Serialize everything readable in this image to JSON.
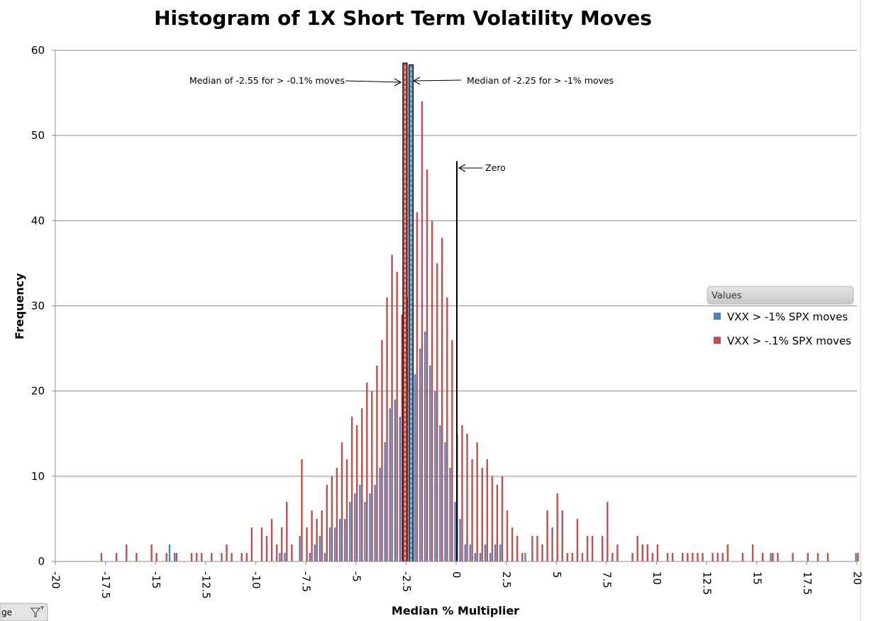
{
  "chart_data": {
    "type": "bar",
    "title": "Histogram of 1X Short Term Volatility Moves",
    "xlabel": "Median % Multiplier",
    "ylabel": "Frequency",
    "xlim": [
      -20,
      20
    ],
    "ylim": [
      0,
      60
    ],
    "x_ticks": [
      "-20",
      "-17.5",
      "-15",
      "-12.5",
      "-10",
      "-7.5",
      "-5",
      "-2.5",
      "0",
      "2.5",
      "5",
      "7.5",
      "10",
      "12.5",
      "15",
      "17.5",
      "20"
    ],
    "y_ticks": [
      "0",
      "10",
      "20",
      "30",
      "40",
      "50",
      "60"
    ],
    "grid": "horizontal",
    "legend": {
      "header": "Values",
      "placement": "right",
      "entries": [
        "VXX > -1% SPX moves",
        "VXX > -.1% SPX moves"
      ]
    },
    "colors": {
      "series_blue": "#4f81bd",
      "series_red": "#c0504d"
    },
    "series": [
      {
        "name": "VXX > -1% SPX moves",
        "points": [
          [
            -14.25,
            2
          ],
          [
            -14.0,
            1
          ],
          [
            -8.75,
            1
          ],
          [
            -8.5,
            1
          ],
          [
            -7.75,
            3
          ],
          [
            -7.25,
            1
          ],
          [
            -7.0,
            2
          ],
          [
            -6.75,
            3
          ],
          [
            -6.5,
            1
          ],
          [
            -6.25,
            4
          ],
          [
            -6.0,
            4
          ],
          [
            -5.75,
            5
          ],
          [
            -5.5,
            5
          ],
          [
            -5.25,
            7
          ],
          [
            -5.0,
            8
          ],
          [
            -4.75,
            9
          ],
          [
            -4.5,
            7
          ],
          [
            -4.25,
            8
          ],
          [
            -4.0,
            9
          ],
          [
            -3.75,
            11
          ],
          [
            -3.5,
            14
          ],
          [
            -3.25,
            18
          ],
          [
            -3.0,
            19
          ],
          [
            -2.75,
            17
          ],
          [
            -2.5,
            15
          ],
          [
            -2.25,
            18
          ],
          [
            -2.0,
            22
          ],
          [
            -1.75,
            25
          ],
          [
            -1.5,
            27
          ],
          [
            -1.25,
            23
          ],
          [
            -1.0,
            20
          ],
          [
            -0.75,
            16
          ],
          [
            -0.5,
            14
          ],
          [
            -0.25,
            11
          ],
          [
            0.0,
            7
          ],
          [
            0.25,
            5
          ],
          [
            0.5,
            2
          ],
          [
            0.75,
            2
          ],
          [
            1.0,
            1
          ],
          [
            1.25,
            1
          ],
          [
            1.5,
            2
          ],
          [
            1.75,
            1
          ],
          [
            2.0,
            2
          ],
          [
            2.25,
            2
          ],
          [
            3.5,
            1
          ],
          [
            15.75,
            1
          ],
          [
            20.0,
            1
          ]
        ]
      },
      {
        "name": "VXX > -.1% SPX moves",
        "points": [
          [
            -17.75,
            1
          ],
          [
            -17.0,
            1
          ],
          [
            -16.5,
            2
          ],
          [
            -16.0,
            1
          ],
          [
            -15.25,
            2
          ],
          [
            -15.0,
            1
          ],
          [
            -14.5,
            1
          ],
          [
            -14.0,
            1
          ],
          [
            -13.25,
            1
          ],
          [
            -13.0,
            1
          ],
          [
            -12.75,
            1
          ],
          [
            -12.25,
            1
          ],
          [
            -11.75,
            1
          ],
          [
            -11.5,
            2
          ],
          [
            -11.25,
            1
          ],
          [
            -10.75,
            1
          ],
          [
            -10.5,
            1
          ],
          [
            -10.25,
            4
          ],
          [
            -9.75,
            4
          ],
          [
            -9.5,
            3
          ],
          [
            -9.25,
            5
          ],
          [
            -9.0,
            2
          ],
          [
            -8.75,
            4
          ],
          [
            -8.5,
            7
          ],
          [
            -8.25,
            2
          ],
          [
            -7.75,
            12
          ],
          [
            -7.5,
            4
          ],
          [
            -7.25,
            6
          ],
          [
            -7.0,
            5
          ],
          [
            -6.75,
            6
          ],
          [
            -6.5,
            9
          ],
          [
            -6.25,
            10
          ],
          [
            -6.0,
            11
          ],
          [
            -5.75,
            14
          ],
          [
            -5.5,
            12
          ],
          [
            -5.25,
            17
          ],
          [
            -5.0,
            16
          ],
          [
            -4.75,
            18
          ],
          [
            -4.5,
            21
          ],
          [
            -4.25,
            20
          ],
          [
            -4.0,
            23
          ],
          [
            -3.75,
            26
          ],
          [
            -3.5,
            31
          ],
          [
            -3.25,
            36
          ],
          [
            -3.0,
            34
          ],
          [
            -2.75,
            29
          ],
          [
            -2.5,
            31
          ],
          [
            -2.25,
            35
          ],
          [
            -2.0,
            41
          ],
          [
            -1.75,
            54
          ],
          [
            -1.5,
            46
          ],
          [
            -1.25,
            40
          ],
          [
            -1.0,
            35
          ],
          [
            -0.75,
            38
          ],
          [
            -0.5,
            31
          ],
          [
            -0.25,
            26
          ],
          [
            0.0,
            15
          ],
          [
            0.25,
            16
          ],
          [
            0.5,
            15
          ],
          [
            0.75,
            12
          ],
          [
            1.0,
            14
          ],
          [
            1.25,
            11
          ],
          [
            1.5,
            12
          ],
          [
            1.75,
            10
          ],
          [
            2.0,
            9
          ],
          [
            2.25,
            10
          ],
          [
            2.5,
            6
          ],
          [
            2.75,
            4
          ],
          [
            3.0,
            3
          ],
          [
            3.25,
            1
          ],
          [
            3.75,
            3
          ],
          [
            4.0,
            3
          ],
          [
            4.25,
            2
          ],
          [
            4.5,
            6
          ],
          [
            4.75,
            4
          ],
          [
            5.0,
            8
          ],
          [
            5.25,
            6
          ],
          [
            5.5,
            1
          ],
          [
            5.75,
            1
          ],
          [
            6.0,
            5
          ],
          [
            6.25,
            1
          ],
          [
            6.5,
            3
          ],
          [
            6.75,
            3
          ],
          [
            7.25,
            3
          ],
          [
            7.5,
            7
          ],
          [
            7.75,
            1
          ],
          [
            8.0,
            2
          ],
          [
            8.75,
            1
          ],
          [
            9.0,
            3
          ],
          [
            9.25,
            2
          ],
          [
            9.5,
            2
          ],
          [
            9.75,
            1
          ],
          [
            10.0,
            2
          ],
          [
            10.5,
            1
          ],
          [
            10.75,
            1
          ],
          [
            11.25,
            1
          ],
          [
            11.5,
            1
          ],
          [
            11.75,
            1
          ],
          [
            12.0,
            1
          ],
          [
            12.25,
            1
          ],
          [
            12.75,
            1
          ],
          [
            13.0,
            1
          ],
          [
            13.25,
            1
          ],
          [
            13.5,
            2
          ],
          [
            14.25,
            1
          ],
          [
            14.75,
            2
          ],
          [
            15.25,
            1
          ],
          [
            15.75,
            1
          ],
          [
            16.0,
            1
          ],
          [
            16.75,
            1
          ],
          [
            17.5,
            1
          ],
          [
            18.0,
            1
          ],
          [
            18.5,
            1
          ],
          [
            20.0,
            1
          ]
        ]
      }
    ],
    "reference_lines": [
      {
        "label": "Median of -2.55  for > -0.1% moves",
        "x": -2.55,
        "color": "#c0504d",
        "top": 58.5
      },
      {
        "label": "Median of -2.25  for > -1% moves",
        "x": -2.25,
        "color": "#4f81bd",
        "top": 58.3
      },
      {
        "label": "Zero",
        "x": 0.0,
        "color": "#000000",
        "top": 47
      }
    ]
  },
  "filter_tab": {
    "label": "ge",
    "icon": "filter-icon"
  }
}
